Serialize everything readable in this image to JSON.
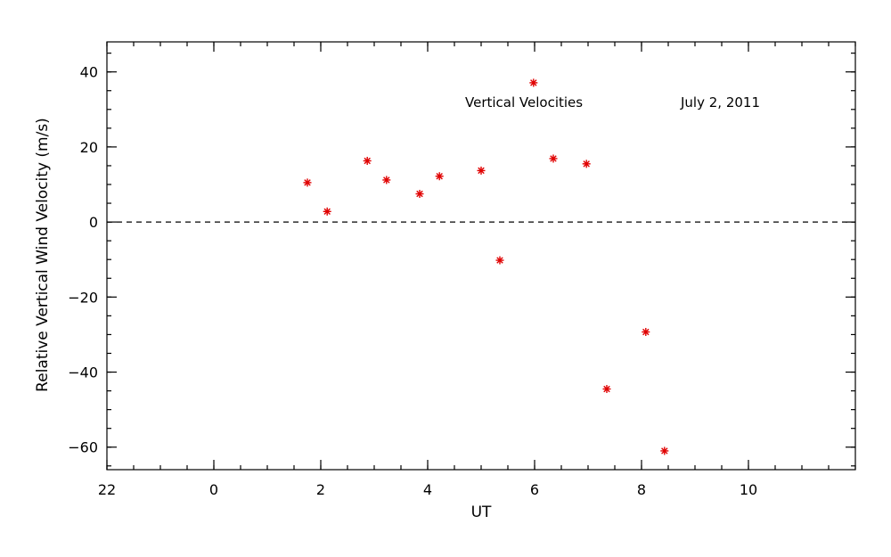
{
  "chart_data": {
    "type": "scatter",
    "title": "",
    "xlabel": "UT",
    "ylabel": "Relative Vertical Wind Velocity (m/s)",
    "x_unit": "hours UT (axis wraps past midnight; 22 = 22 UT on the previous day)",
    "xlim": [
      -2,
      12
    ],
    "ylim": [
      -66,
      48
    ],
    "x_major_ticks": [
      -2,
      0,
      2,
      4,
      6,
      8,
      10
    ],
    "x_tick_labels": [
      "22",
      "0",
      "2",
      "4",
      "6",
      "8",
      "10"
    ],
    "x_minor_step": 0.5,
    "y_major_ticks": [
      -60,
      -40,
      -20,
      0,
      20,
      40
    ],
    "y_tick_labels": [
      "−60",
      "−40",
      "−20",
      "0",
      "20",
      "40"
    ],
    "y_minor_step": 5,
    "reference_line": {
      "y": 0,
      "style": "dashed"
    },
    "grid": false,
    "annotations": [
      "Vertical Velocities",
      "July 2, 2011"
    ],
    "series": [
      {
        "color": "#e00000",
        "marker": "asterisk",
        "points": [
          {
            "x": 1.75,
            "y": 10.5
          },
          {
            "x": 2.12,
            "y": 2.8
          },
          {
            "x": 2.87,
            "y": 16.3
          },
          {
            "x": 3.23,
            "y": 11.2
          },
          {
            "x": 3.85,
            "y": 7.5
          },
          {
            "x": 4.22,
            "y": 12.2
          },
          {
            "x": 5.0,
            "y": 13.7
          },
          {
            "x": 5.35,
            "y": -10.2
          },
          {
            "x": 5.98,
            "y": 37.1
          },
          {
            "x": 6.35,
            "y": 16.9
          },
          {
            "x": 6.97,
            "y": 15.5
          },
          {
            "x": 7.35,
            "y": -44.5
          },
          {
            "x": 8.08,
            "y": -29.3
          },
          {
            "x": 8.43,
            "y": -61.0
          }
        ]
      }
    ]
  }
}
